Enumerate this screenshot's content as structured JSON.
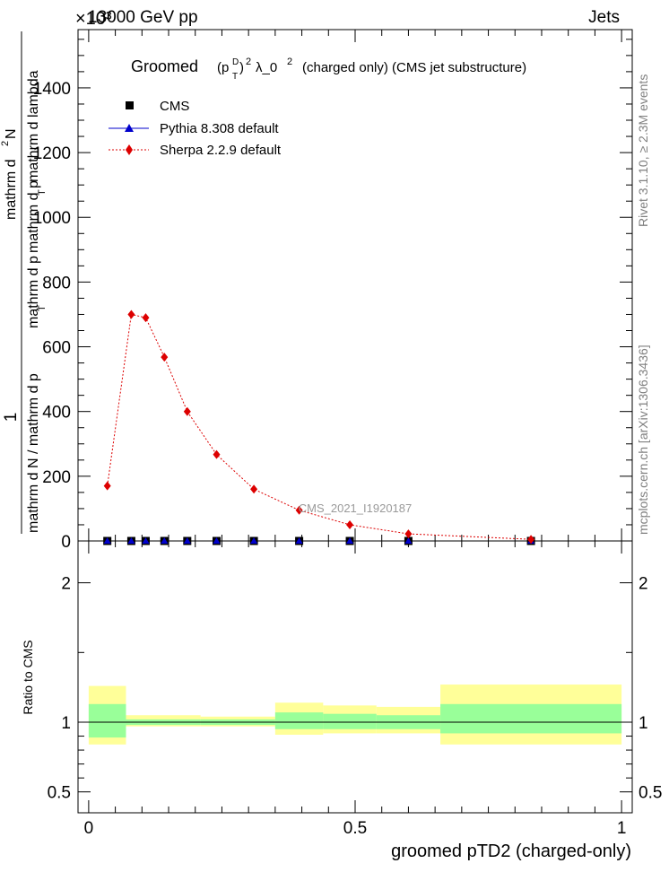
{
  "header": {
    "left": "13000 GeV pp",
    "right": "Jets",
    "exponent": "×10³"
  },
  "side": {
    "rivet": "Rivet 3.1.10, ≥ 2.3M events",
    "mcplots": "mcplots.cern.ch [arXiv:1306.3436]"
  },
  "watermark": "CMS_2021_I1920187",
  "chart_data": [
    {
      "type": "line",
      "title": "Groomed (p_T^D)² λ_0²  (charged only) (CMS jet substructure)",
      "title_parts": {
        "main": "Groomed",
        "sym_p": "(p",
        "sym_sup_D": "D",
        "sym_sub_T": "T",
        "sym_close": ")",
        "sym_sq1": "2",
        "sym_lambda": "λ_0",
        "sym_sq2": "2",
        "rest": "(charged only) (CMS jet substructure)"
      },
      "ylabel_parts": {
        "numerator": "1",
        "den_top_a": "mathrm d",
        "den_top_sup": "2",
        "den_top_b": "N",
        "den_bottom_a": "mathrm d p",
        "den_bottom_sub": "T",
        "den_bottom_b": "mathrm d lambda",
        "inner_a": "mathrm d N / mathrm d p",
        "inner_sub": "T",
        "inner_b": "mathrm d p",
        "inner_sub2": "T",
        "inner_c": "mathrm d p"
      },
      "xlim": [
        -0.02,
        1.02
      ],
      "ylim": [
        0,
        1580
      ],
      "y_scale_note": "×10³",
      "yticks": [
        0,
        200,
        400,
        600,
        800,
        1000,
        1200,
        1400
      ],
      "ytick_labels": [
        "0",
        "200",
        "400",
        "600",
        "800",
        "1000",
        "1200",
        "1400"
      ],
      "legend": {
        "position": "top-left",
        "entries": [
          "CMS",
          "Pythia 8.308 default",
          "Sherpa 2.2.9 default"
        ]
      },
      "series": [
        {
          "name": "CMS",
          "color": "#000000",
          "marker": "square",
          "x": [
            0.035,
            0.08,
            0.107,
            0.142,
            0.185,
            0.24,
            0.31,
            0.395,
            0.49,
            0.6,
            0.83
          ],
          "y": [
            0,
            0,
            0,
            0,
            0,
            0,
            0,
            0,
            0,
            0,
            0
          ]
        },
        {
          "name": "Pythia 8.308 default",
          "color": "#0000cc",
          "marker": "triangle",
          "x": [
            0.035,
            0.08,
            0.107,
            0.142,
            0.185,
            0.24,
            0.31,
            0.395,
            0.49,
            0.6,
            0.83
          ],
          "y": [
            0,
            0,
            0,
            0,
            0,
            0,
            0,
            0,
            0,
            0,
            0
          ]
        },
        {
          "name": "Sherpa 2.2.9 default",
          "color": "#dd0000",
          "marker": "diamond",
          "x": [
            0.035,
            0.08,
            0.107,
            0.142,
            0.185,
            0.24,
            0.31,
            0.395,
            0.49,
            0.6,
            0.83
          ],
          "y": [
            170,
            700,
            690,
            568,
            400,
            267,
            160,
            95,
            50,
            22,
            5
          ]
        }
      ]
    },
    {
      "type": "area",
      "ylabel": "Ratio to CMS",
      "xlabel": "groomed pTD2 (charged-only)",
      "xlim": [
        -0.02,
        1.02
      ],
      "ylim": [
        0.35,
        2.3
      ],
      "xticks": [
        0,
        0.5,
        1
      ],
      "xtick_labels": [
        "0",
        "0.5",
        "1"
      ],
      "yticks": [
        0.5,
        1,
        2
      ],
      "ytick_labels": [
        "0.5",
        "1",
        "2"
      ],
      "band_colors": {
        "outer": "#ffff99",
        "inner": "#99ff99",
        "line": "#000000"
      },
      "bands": [
        {
          "x0": 0.0,
          "x1": 0.07,
          "outer": [
            0.84,
            1.26
          ],
          "inner": [
            0.89,
            1.13
          ]
        },
        {
          "x0": 0.07,
          "x1": 0.21,
          "outer": [
            0.97,
            1.05
          ],
          "inner": [
            0.98,
            1.02
          ]
        },
        {
          "x0": 0.21,
          "x1": 0.35,
          "outer": [
            0.97,
            1.04
          ],
          "inner": [
            0.98,
            1.02
          ]
        },
        {
          "x0": 0.35,
          "x1": 0.44,
          "outer": [
            0.91,
            1.14
          ],
          "inner": [
            0.95,
            1.07
          ]
        },
        {
          "x0": 0.44,
          "x1": 0.54,
          "outer": [
            0.92,
            1.12
          ],
          "inner": [
            0.95,
            1.06
          ]
        },
        {
          "x0": 0.54,
          "x1": 0.66,
          "outer": [
            0.92,
            1.11
          ],
          "inner": [
            0.95,
            1.05
          ]
        },
        {
          "x0": 0.66,
          "x1": 1.0,
          "outer": [
            0.84,
            1.27
          ],
          "inner": [
            0.92,
            1.13
          ]
        }
      ]
    }
  ]
}
